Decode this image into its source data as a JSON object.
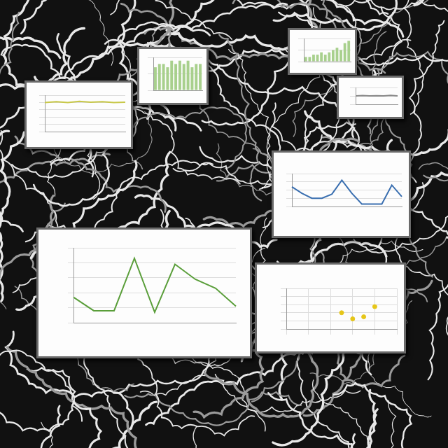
{
  "chart_data": [
    {
      "type": "line",
      "categories": [
        null,
        null,
        null,
        null,
        null,
        null,
        null,
        null
      ],
      "values": [
        8,
        8.2,
        8,
        8.3,
        8.1,
        8.2,
        8,
        8.1
      ],
      "color": "#c8c84a",
      "ylim": [
        0,
        10
      ],
      "yticks": [
        0,
        2,
        4,
        6,
        8,
        10
      ],
      "grid": true,
      "tick_labels": false
    },
    {
      "type": "bar",
      "categories": [
        null,
        null,
        null,
        null,
        null,
        null,
        null,
        null,
        null,
        null,
        null,
        null
      ],
      "values": [
        7,
        8,
        8,
        7,
        9,
        8,
        9,
        8,
        9,
        7,
        8,
        8
      ],
      "color": "#a8d08d",
      "ylim": [
        0,
        10
      ],
      "yticks": [
        0,
        5,
        10
      ],
      "grid": true,
      "tick_labels": false
    },
    {
      "type": "bar",
      "categories": [
        null,
        null,
        null,
        null,
        null,
        null,
        null,
        null,
        null,
        null,
        null,
        null
      ],
      "values": [
        2,
        2,
        3,
        3,
        4,
        3,
        4,
        5,
        6,
        5,
        8,
        9
      ],
      "color": "#a8d08d",
      "ylim": [
        0,
        10
      ],
      "yticks": [
        0,
        5,
        10
      ],
      "grid": true,
      "tick_labels": false
    },
    {
      "type": "line",
      "categories": [
        null,
        null,
        null,
        null,
        null,
        null,
        null
      ],
      "values": [
        5,
        5.2,
        5,
        5.1,
        5,
        5.3,
        5
      ],
      "color": "#888888",
      "ylim": [
        0,
        10
      ],
      "yticks": [
        0,
        5,
        10
      ],
      "grid": true,
      "tick_labels": false
    },
    {
      "type": "line",
      "categories": [
        null,
        null,
        null,
        null,
        null,
        null,
        null,
        null,
        null,
        null,
        null,
        null
      ],
      "values": [
        2.4,
        1.6,
        1.0,
        1.0,
        1.5,
        3.2,
        1.6,
        0.3,
        0.3,
        0.3,
        2.6,
        1.2
      ],
      "color": "#3a6fb0",
      "ylim": [
        0,
        4
      ],
      "yticks": [
        0,
        1,
        2,
        3,
        4
      ],
      "grid": true,
      "tick_labels": false
    },
    {
      "type": "line",
      "categories": [
        null,
        null,
        null,
        null,
        null,
        null,
        null,
        null,
        null
      ],
      "values": [
        1.7,
        0.8,
        0.8,
        4.3,
        0.7,
        3.9,
        2.9,
        2.3,
        1.1
      ],
      "color": "#5a9e3a",
      "ylim": [
        0,
        5
      ],
      "yticks": [
        0,
        1,
        2,
        3,
        4,
        5
      ],
      "grid": true,
      "tick_labels": false
    },
    {
      "type": "scatter",
      "x": [
        5,
        6,
        7,
        8
      ],
      "values": [
        4,
        2.5,
        3,
        5.5
      ],
      "color": "#e6c619",
      "xlim": [
        0,
        10
      ],
      "xticks": [
        0,
        2,
        4,
        6,
        8,
        10
      ],
      "ylim": [
        0,
        10
      ],
      "yticks": [
        0,
        2,
        4,
        6,
        8,
        10
      ],
      "grid": true,
      "tick_labels": false
    }
  ]
}
